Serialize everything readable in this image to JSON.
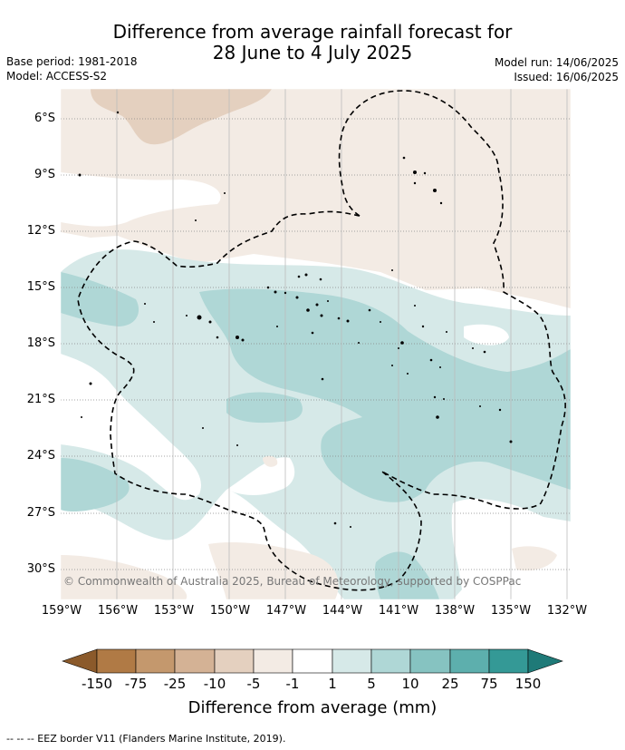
{
  "title_line1": "Difference from average rainfall forecast for",
  "title_line2": "28 June to 4 July 2025",
  "meta": {
    "base_period": "Base period: 1981-2018",
    "model": "Model: ACCESS-S2",
    "model_run": "Model run: 14/06/2025",
    "issued": "Issued: 16/06/2025"
  },
  "lat_labels": [
    "6°S",
    "9°S",
    "12°S",
    "15°S",
    "18°S",
    "21°S",
    "24°S",
    "27°S",
    "30°S"
  ],
  "lon_labels": [
    "159°W",
    "156°W",
    "153°W",
    "150°W",
    "147°W",
    "144°W",
    "141°W",
    "138°W",
    "135°W",
    "132°W"
  ],
  "copyright": "© Commonwealth of Australia 2025, Bureau of Meteorology, supported by COSPPac",
  "colorbar": {
    "title": "Difference from average (mm)",
    "labels": [
      "-150",
      "-75",
      "-25",
      "-10",
      "-5",
      "-1",
      "1",
      "5",
      "10",
      "25",
      "75",
      "150"
    ],
    "colors": [
      "#b07a45",
      "#c4986d",
      "#d4b295",
      "#e4d0bf",
      "#f3ebe4",
      "#ffffff",
      "#d6e9e8",
      "#afd7d6",
      "#86c3c1",
      "#5dafad",
      "#349996"
    ],
    "extend_low": "#8b5a2b",
    "extend_high": "#1f7a78"
  },
  "footer": "--  --  -- EEZ border V11 (Flanders Marine Institute, 2019)."
}
